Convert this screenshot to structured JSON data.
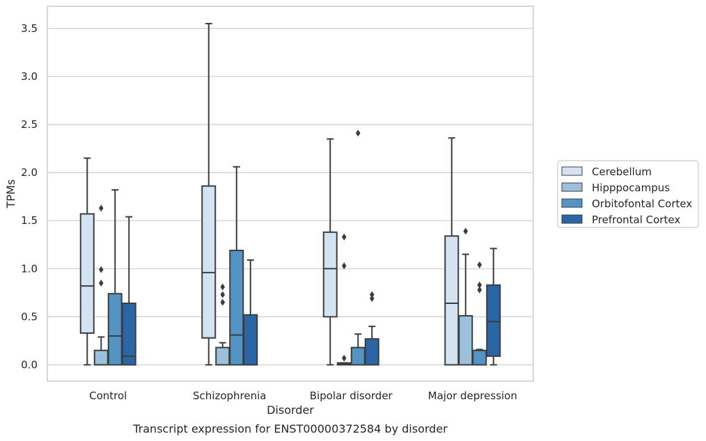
{
  "chart_data": {
    "type": "box",
    "caption": "Transcript expression for ENST00000372584 by disorder",
    "xlabel": "Disorder",
    "ylabel": "TPMs",
    "ylim": [
      -0.17,
      3.73
    ],
    "yticks": [
      "0.0",
      "0.5",
      "1.0",
      "1.5",
      "2.0",
      "2.5",
      "3.0",
      "3.5"
    ],
    "grid": true,
    "legend_position": "right",
    "categories": [
      "Control",
      "Schizophrenia",
      "Bipolar disorder",
      "Major depression"
    ],
    "series": [
      {
        "name": "Cerebellum",
        "color": "#d3e3f2",
        "boxes": [
          {
            "whisker_low": 0.0,
            "q1": 0.33,
            "median": 0.82,
            "q3": 1.57,
            "whisker_high": 2.15,
            "outliers": []
          },
          {
            "whisker_low": 0.0,
            "q1": 0.28,
            "median": 0.96,
            "q3": 1.86,
            "whisker_high": 3.55,
            "outliers": []
          },
          {
            "whisker_low": 0.0,
            "q1": 0.5,
            "median": 1.0,
            "q3": 1.38,
            "whisker_high": 2.35,
            "outliers": []
          },
          {
            "whisker_low": 0.0,
            "q1": 0.0,
            "median": 0.64,
            "q3": 1.34,
            "whisker_high": 2.36,
            "outliers": []
          }
        ]
      },
      {
        "name": "Hipppocampus",
        "color": "#9ac0dc",
        "boxes": [
          {
            "whisker_low": 0.0,
            "q1": 0.0,
            "median": 0.0,
            "q3": 0.15,
            "whisker_high": 0.29,
            "outliers": [
              0.85,
              0.99,
              1.63
            ]
          },
          {
            "whisker_low": 0.0,
            "q1": 0.0,
            "median": 0.0,
            "q3": 0.18,
            "whisker_high": 0.23,
            "outliers": [
              0.65,
              0.73,
              0.81
            ]
          },
          {
            "whisker_low": 0.0,
            "q1": 0.0,
            "median": 0.01,
            "q3": 0.02,
            "whisker_high": 0.02,
            "outliers": [
              0.07,
              1.03,
              1.33
            ]
          },
          {
            "whisker_low": 0.0,
            "q1": 0.0,
            "median": 0.0,
            "q3": 0.51,
            "whisker_high": 1.15,
            "outliers": [
              1.39
            ]
          }
        ]
      },
      {
        "name": "Orbitofontal Cortex",
        "color": "#5494c4",
        "boxes": [
          {
            "whisker_low": 0.0,
            "q1": 0.0,
            "median": 0.3,
            "q3": 0.74,
            "whisker_high": 1.82,
            "outliers": []
          },
          {
            "whisker_low": 0.0,
            "q1": 0.0,
            "median": 0.31,
            "q3": 1.19,
            "whisker_high": 2.06,
            "outliers": []
          },
          {
            "whisker_low": 0.0,
            "q1": 0.0,
            "median": 0.0,
            "q3": 0.18,
            "whisker_high": 0.32,
            "outliers": [
              2.41
            ]
          },
          {
            "whisker_low": 0.0,
            "q1": 0.0,
            "median": 0.0,
            "q3": 0.15,
            "whisker_high": 0.16,
            "outliers": [
              0.78,
              0.83,
              1.04
            ]
          }
        ]
      },
      {
        "name": "Prefrontal Cortex",
        "color": "#2a66a6",
        "boxes": [
          {
            "whisker_low": 0.0,
            "q1": 0.0,
            "median": 0.09,
            "q3": 0.64,
            "whisker_high": 1.54,
            "outliers": []
          },
          {
            "whisker_low": 0.0,
            "q1": 0.0,
            "median": 0.0,
            "q3": 0.52,
            "whisker_high": 1.09,
            "outliers": []
          },
          {
            "whisker_low": 0.0,
            "q1": 0.0,
            "median": 0.0,
            "q3": 0.27,
            "whisker_high": 0.4,
            "outliers": [
              0.69,
              0.73
            ]
          },
          {
            "whisker_low": 0.0,
            "q1": 0.09,
            "median": 0.45,
            "q3": 0.83,
            "whisker_high": 1.21,
            "outliers": []
          }
        ]
      }
    ]
  }
}
